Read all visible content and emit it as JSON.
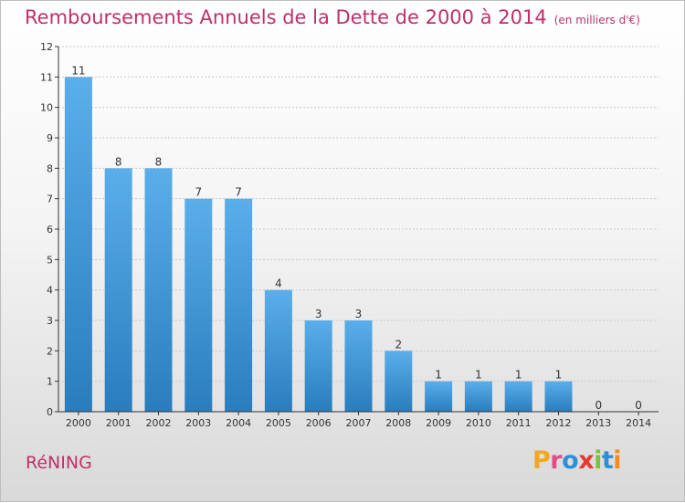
{
  "title": "Remboursements Annuels de la Dette de 2000 à 2014",
  "subtitle": "(en milliers d'€)",
  "city": "RéNING",
  "logo": {
    "letters": [
      "P",
      "r",
      "o",
      "x",
      "i",
      "t",
      "i"
    ],
    "colors": [
      "#f2a81d",
      "#e24c8a",
      "#2f8fd6",
      "#e83a2e",
      "#7cc143",
      "#2f8fd6",
      "#f28c1d"
    ]
  },
  "colors": {
    "bar_top": "#5aaeea",
    "bar_bottom": "#2a7dbd",
    "title": "#c0306a",
    "grid": "#c8c8c8"
  },
  "chart_data": {
    "type": "bar",
    "title": "Remboursements Annuels de la Dette de 2000 à 2014",
    "subtitle": "(en milliers d'€)",
    "categories": [
      "2000",
      "2001",
      "2002",
      "2003",
      "2004",
      "2005",
      "2006",
      "2007",
      "2008",
      "2009",
      "2010",
      "2011",
      "2012",
      "2013",
      "2014"
    ],
    "values": [
      11,
      8,
      8,
      7,
      7,
      4,
      3,
      3,
      2,
      1,
      1,
      1,
      1,
      0,
      0
    ],
    "xlabel": "",
    "ylabel": "",
    "ylim": [
      0,
      12
    ],
    "yticks": [
      0,
      1,
      2,
      3,
      4,
      5,
      6,
      7,
      8,
      9,
      10,
      11,
      12
    ],
    "grid": true,
    "data_labels": true
  }
}
